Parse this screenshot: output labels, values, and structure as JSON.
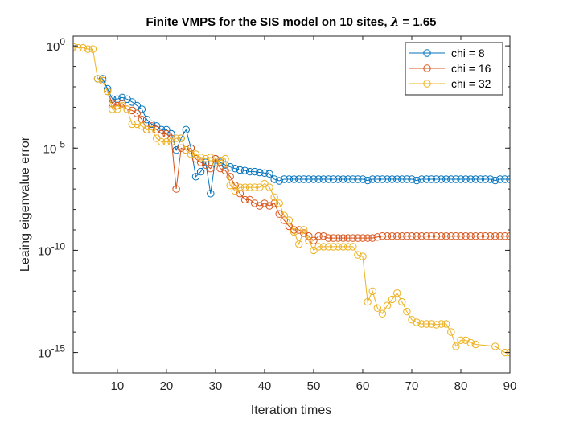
{
  "chart_data": {
    "type": "line",
    "title_prefix": "Finite VMPS for the SIS model on 10 sites, ",
    "title_symbol": "λ",
    "title_suffix": " = 1.65",
    "xlabel": "Iteration times",
    "ylabel": "Leaing eigenvalue error",
    "xlim": [
      1,
      90
    ],
    "ylim": [
      1e-16,
      3
    ],
    "yscale": "log",
    "grid": false,
    "legend_placement": "top-right",
    "x_ticks": [
      10,
      20,
      30,
      40,
      50,
      60,
      70,
      80,
      90
    ],
    "x_tick_labels": [
      "10",
      "20",
      "30",
      "40",
      "50",
      "60",
      "70",
      "80",
      "90"
    ],
    "y_ticks": [
      1,
      1e-05,
      1e-10,
      1e-15
    ],
    "y_tick_labels": [
      {
        "base": "10",
        "exp": "0"
      },
      {
        "base": "10",
        "exp": "-5"
      },
      {
        "base": "10",
        "exp": "-10"
      },
      {
        "base": "10",
        "exp": "-15"
      }
    ],
    "series": [
      {
        "name": "chi = 8",
        "color": "#0072BD",
        "x": [
          6,
          7,
          8,
          9,
          10,
          11,
          12,
          13,
          14,
          15,
          16,
          17,
          18,
          19,
          20,
          21,
          22,
          23,
          24,
          25,
          26,
          27,
          28,
          29,
          30,
          31,
          32,
          33,
          34,
          35,
          36,
          37,
          38,
          39,
          40,
          41,
          42,
          43,
          44,
          45,
          46,
          47,
          48,
          49,
          50,
          51,
          52,
          53,
          54,
          55,
          56,
          57,
          58,
          59,
          60,
          61,
          62,
          63,
          64,
          65,
          66,
          67,
          68,
          69,
          70,
          71,
          72,
          73,
          74,
          75,
          76,
          77,
          78,
          79,
          80,
          81,
          82,
          83,
          84,
          85,
          86,
          87,
          88,
          89,
          90
        ],
        "y": [
          0.025,
          0.025,
          0.008,
          0.0025,
          0.0025,
          0.003,
          0.0025,
          0.0018,
          0.0012,
          0.0008,
          0.00025,
          0.00015,
          0.00012,
          8e-05,
          8e-05,
          5e-05,
          8e-06,
          3e-05,
          8e-05,
          1e-05,
          4e-07,
          7e-07,
          2e-06,
          6e-08,
          3e-06,
          2e-06,
          1.5e-06,
          1.2e-06,
          1e-06,
          8.5e-07,
          8e-07,
          7e-07,
          7e-07,
          6.5e-07,
          6e-07,
          5.5e-07,
          3e-07,
          2.5e-07,
          3e-07,
          3e-07,
          3e-07,
          3e-07,
          3e-07,
          3e-07,
          3e-07,
          3e-07,
          3e-07,
          3e-07,
          3e-07,
          3e-07,
          3e-07,
          3e-07,
          3e-07,
          3e-07,
          3e-07,
          2.6e-07,
          3e-07,
          3e-07,
          3e-07,
          3e-07,
          3e-07,
          3e-07,
          3e-07,
          3e-07,
          3e-07,
          2.6e-07,
          3e-07,
          3e-07,
          3e-07,
          3e-07,
          3e-07,
          3e-07,
          3e-07,
          3e-07,
          3e-07,
          3e-07,
          3e-07,
          3e-07,
          3e-07,
          3e-07,
          3e-07,
          2.6e-07,
          3e-07,
          3e-07,
          3e-07
        ]
      },
      {
        "name": "chi = 16",
        "color": "#D95319",
        "x": [
          7,
          8,
          9,
          10,
          11,
          12,
          13,
          14,
          15,
          16,
          17,
          18,
          19,
          20,
          21,
          22,
          23,
          24,
          25,
          26,
          27,
          28,
          29,
          30,
          31,
          32,
          33,
          34,
          35,
          36,
          37,
          38,
          39,
          40,
          41,
          42,
          43,
          44,
          45,
          46,
          47,
          48,
          49,
          50,
          51,
          52,
          53,
          54,
          55,
          56,
          57,
          58,
          59,
          60,
          61,
          62,
          63,
          64,
          65,
          66,
          67,
          68,
          69,
          70,
          71,
          72,
          73,
          74,
          75,
          76,
          77,
          78,
          79,
          80,
          81,
          82,
          83,
          84,
          85,
          86,
          87,
          88,
          89,
          90
        ],
        "y": [
          0.02,
          0.006,
          0.0015,
          0.0012,
          0.0015,
          0.0008,
          0.0007,
          0.0005,
          0.00025,
          8e-05,
          0.00012,
          8e-05,
          5e-05,
          5e-05,
          3e-05,
          1e-07,
          1e-05,
          8e-06,
          1e-05,
          3e-06,
          2e-06,
          1.5e-06,
          1e-06,
          3e-06,
          1e-06,
          8e-07,
          4e-07,
          1.5e-07,
          6e-08,
          3e-08,
          3e-08,
          2e-08,
          1.5e-08,
          2e-08,
          1.5e-08,
          2e-08,
          6e-09,
          3e-09,
          1.5e-09,
          1e-09,
          1e-09,
          7e-10,
          5e-10,
          3e-10,
          5e-10,
          5e-10,
          4e-10,
          4e-10,
          4e-10,
          4e-10,
          4e-10,
          4e-10,
          4e-10,
          4e-10,
          4e-10,
          4e-10,
          4.5e-10,
          5e-10,
          5e-10,
          5e-10,
          5e-10,
          5e-10,
          5e-10,
          5e-10,
          5e-10,
          5e-10,
          5e-10,
          5e-10,
          5e-10,
          5e-10,
          5e-10,
          5e-10,
          5e-10,
          5e-10,
          5e-10,
          5e-10,
          5e-10,
          5e-10,
          5e-10,
          5e-10,
          5e-10,
          5e-10,
          5e-10,
          5e-10
        ]
      },
      {
        "name": "chi = 32",
        "color": "#EDB120",
        "x": [
          1,
          2,
          3,
          4,
          5,
          6,
          7,
          8,
          9,
          10,
          11,
          12,
          13,
          14,
          15,
          16,
          17,
          18,
          19,
          20,
          21,
          22,
          23,
          24,
          25,
          26,
          27,
          28,
          29,
          30,
          31,
          32,
          33,
          34,
          35,
          36,
          37,
          38,
          39,
          40,
          41,
          42,
          43,
          44,
          45,
          46,
          47,
          48,
          49,
          50,
          51,
          52,
          53,
          54,
          55,
          56,
          57,
          58,
          59,
          60,
          61,
          62,
          63,
          64,
          65,
          66,
          67,
          68,
          69,
          70,
          71,
          72,
          73,
          74,
          75,
          76,
          77,
          78,
          79,
          80,
          81,
          82,
          83,
          87,
          89,
          90
        ],
        "y": [
          0.9,
          0.8,
          0.8,
          0.7,
          0.7,
          0.025,
          0.02,
          0.006,
          0.0008,
          0.0008,
          0.0012,
          0.0008,
          0.00015,
          0.00015,
          0.00012,
          8e-05,
          8e-05,
          3e-05,
          2e-05,
          2e-05,
          2e-05,
          3e-05,
          3e-05,
          8e-06,
          5e-06,
          5e-06,
          3.5e-06,
          3e-06,
          3.5e-06,
          2e-06,
          2.5e-06,
          3e-06,
          1.5e-07,
          8e-08,
          1.2e-07,
          1.2e-07,
          1.2e-07,
          1.2e-07,
          1.2e-07,
          1.8e-07,
          1.2e-07,
          4e-08,
          2e-08,
          5e-09,
          3e-09,
          8e-10,
          2e-10,
          1e-09,
          3e-10,
          1e-10,
          1.5e-10,
          1.5e-10,
          1.5e-10,
          1.5e-10,
          1.5e-10,
          1.5e-10,
          1.5e-10,
          1.5e-10,
          6e-11,
          5e-11,
          3e-13,
          1e-12,
          1.5e-13,
          8e-14,
          2e-13,
          4e-13,
          8e-13,
          3e-13,
          1e-13,
          4e-14,
          3e-14,
          2.5e-14,
          2.5e-14,
          2.5e-14,
          2.3e-14,
          2.5e-14,
          2.5e-14,
          1e-14,
          2e-15,
          4e-15,
          4e-15,
          3e-15,
          2.5e-15,
          2e-15,
          1e-15,
          1e-15
        ]
      }
    ]
  }
}
